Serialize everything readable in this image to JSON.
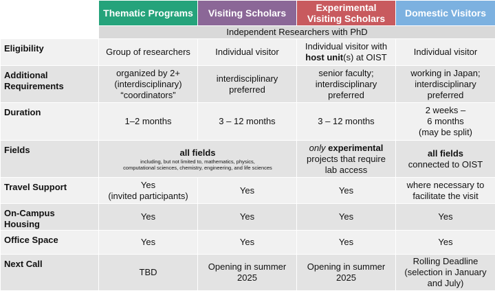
{
  "header": {
    "columns": [
      "Thematic Programs",
      "Visiting Scholars",
      "Experimental Visiting Scholars",
      "Domestic Visitors"
    ]
  },
  "table": {
    "span_row": "Independent Researchers with PhD",
    "rows": [
      {
        "label": [
          "Eligibility"
        ],
        "cells": [
          [
            "Group of researchers"
          ],
          [
            "Individual visitor"
          ],
          [
            "Individual visitor with",
            "host unit",
            "(s) at OIST"
          ],
          [
            "Individual visitor"
          ]
        ]
      },
      {
        "label": [
          "Additional",
          "Requirements"
        ],
        "cells": [
          [
            "organized by 2+",
            "(interdisciplinary)",
            "“coordinators”"
          ],
          [
            "interdisciplinary",
            "preferred"
          ],
          [
            "senior faculty;",
            "interdisciplinary",
            "preferred"
          ],
          [
            "working in Japan;",
            "interdisciplinary",
            "preferred"
          ]
        ]
      },
      {
        "label": [
          "Duration"
        ],
        "cells": [
          [
            "1–2 months"
          ],
          [
            "3 – 12 months"
          ],
          [
            "3 – 12 months"
          ],
          [
            "2 weeks –",
            "6 months",
            "(may be split)"
          ]
        ]
      },
      {
        "label": [
          "Fields"
        ],
        "cells": [
          [
            "all fields",
            "including, but not limited to, mathematics, physics,",
            "computational sciences, chemistry, engineering, and life sciences"
          ],
          [
            "only",
            " experimental",
            "projects that require",
            "lab access"
          ],
          [
            "all fields",
            "connected to OIST"
          ]
        ]
      },
      {
        "label": [
          "Travel Support"
        ],
        "cells": [
          [
            "Yes",
            "(invited participants)"
          ],
          [
            "Yes"
          ],
          [
            "Yes"
          ],
          [
            "where necessary to",
            "facilitate the visit"
          ]
        ]
      },
      {
        "label": [
          "On-Campus",
          "Housing"
        ],
        "cells": [
          [
            "Yes"
          ],
          [
            "Yes"
          ],
          [
            "Yes"
          ],
          [
            "Yes"
          ]
        ]
      },
      {
        "label": [
          "Office Space"
        ],
        "cells": [
          [
            "Yes"
          ],
          [
            "Yes"
          ],
          [
            "Yes"
          ],
          [
            "Yes"
          ]
        ]
      },
      {
        "label": [
          "Next Call"
        ],
        "cells": [
          [
            "TBD"
          ],
          [
            "Opening in summer",
            "2025"
          ],
          [
            "Opening in summer",
            "2025"
          ],
          [
            "Rolling Deadline",
            "(selection in January",
            "and July)"
          ]
        ]
      }
    ]
  }
}
